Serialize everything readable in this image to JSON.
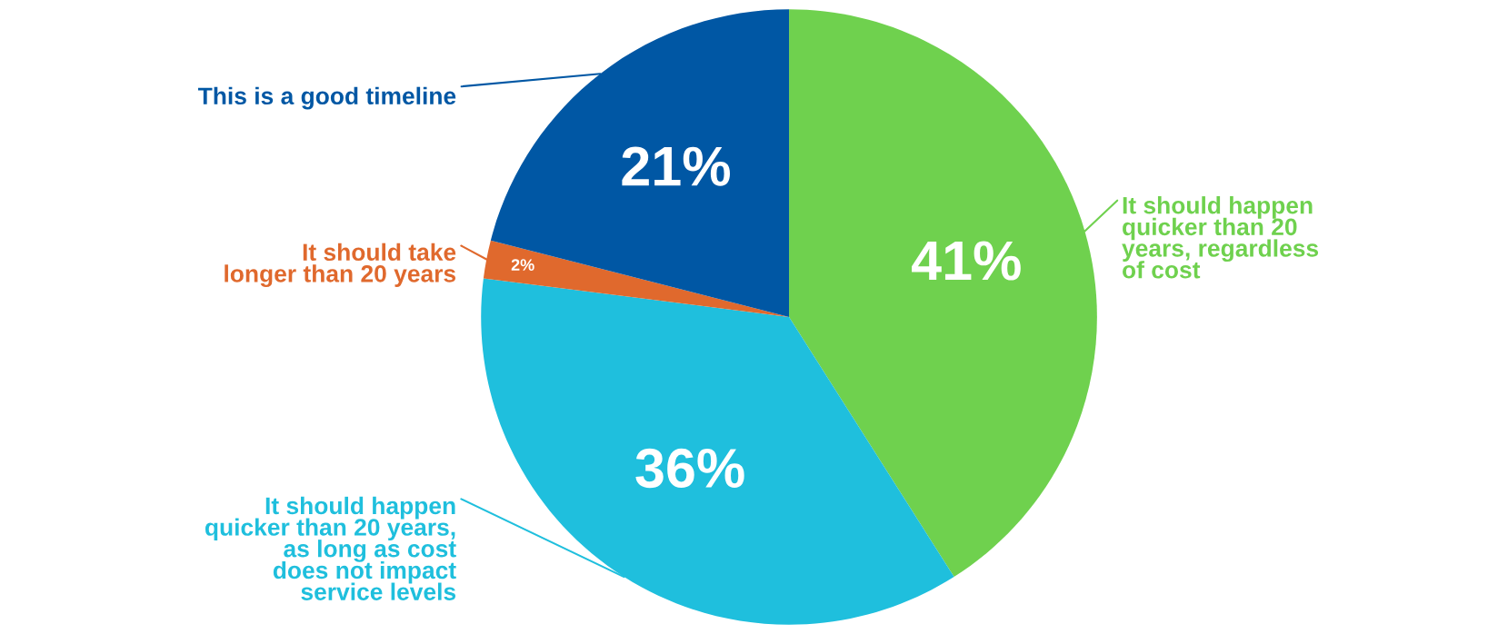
{
  "chart_data": {
    "type": "pie",
    "categories": [
      "It should happen\nquicker than 20\nyears, regardless\nof cost",
      "It should happen\nquicker than 20 years,\nas long as cost\ndoes not impact\nservice levels",
      "It should take\nlonger than 20 years",
      "This is a good timeline"
    ],
    "values": [
      41,
      36,
      2,
      21
    ],
    "colors": [
      "#6fd14e",
      "#1fbfdd",
      "#e0692d",
      "#0057a4"
    ],
    "value_labels": [
      "41%",
      "36%",
      "2%",
      "21%"
    ]
  }
}
